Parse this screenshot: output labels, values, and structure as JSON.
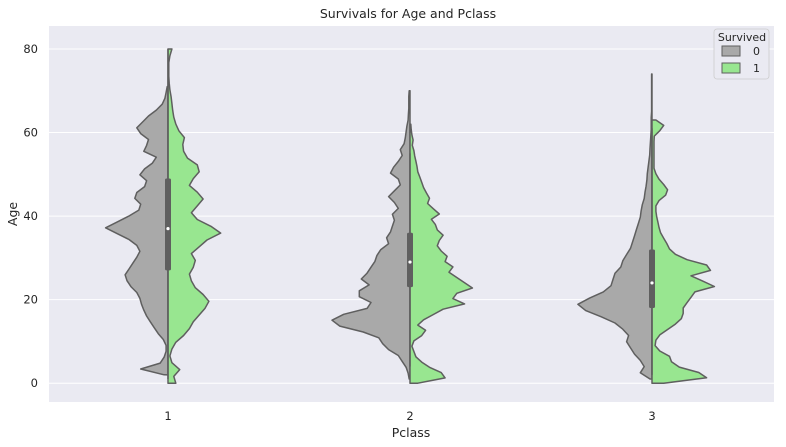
{
  "chart_data": {
    "type": "violin",
    "title": "Survivals for Age and Pclass",
    "xlabel": "Pclass",
    "ylabel": "Age",
    "categories": [
      "1",
      "2",
      "3"
    ],
    "yticks": [
      0,
      20,
      40,
      60,
      80
    ],
    "ylim": [
      -4.5,
      85.5
    ],
    "grid": true,
    "legend": {
      "title": "Survived",
      "position": "top-right",
      "entries": [
        {
          "label": "0",
          "color": "#a9a9a9"
        },
        {
          "label": "1",
          "color": "#98e690"
        }
      ]
    },
    "colors": {
      "background": "#eaeaf2",
      "grid": "#ffffff",
      "outline": "#5f5f5f",
      "survived_0": "#a9a9a9",
      "survived_1": "#98e690"
    },
    "violins": [
      {
        "pclass": "1",
        "survived_0": {
          "range": [
            2,
            71
          ],
          "density": [
            0.1,
            0.7,
            0.2,
            0.1,
            0.05,
            0.05,
            0.12,
            0.25,
            0.35,
            0.45,
            0.55,
            0.62,
            0.68,
            0.72,
            0.8,
            0.95,
            1.05,
            1.1,
            1.0,
            0.9,
            0.8,
            0.72,
            0.8,
            1.0,
            1.3,
            1.6,
            1.3,
            1.0,
            0.75,
            0.7,
            0.85,
            0.8,
            0.6,
            0.55,
            0.72,
            0.6,
            0.4,
            0.3,
            0.62,
            0.55,
            0.5,
            0.7,
            0.8,
            0.65,
            0.5,
            0.3,
            0.15,
            0.08,
            0.05,
            0.02
          ]
        },
        "survived_1": {
          "range": [
            0,
            80
          ],
          "density": [
            0.2,
            0.15,
            0.3,
            0.1,
            0.05,
            0.1,
            0.2,
            0.4,
            0.55,
            0.65,
            0.8,
            0.95,
            1.05,
            0.9,
            0.7,
            0.6,
            0.55,
            0.65,
            0.7,
            0.6,
            0.8,
            1.0,
            1.35,
            1.1,
            0.75,
            0.6,
            0.75,
            0.9,
            0.75,
            0.55,
            0.65,
            0.8,
            0.75,
            0.5,
            0.4,
            0.38,
            0.42,
            0.28,
            0.2,
            0.15,
            0.12,
            0.1,
            0.08,
            0.05,
            0.03,
            0.02,
            0.02,
            0.02,
            0.05,
            0.1
          ]
        }
      },
      {
        "pclass": "2",
        "survived_0": {
          "range": [
            1,
            70
          ],
          "density": [
            0.02,
            0.05,
            0.1,
            0.2,
            0.3,
            0.55,
            0.7,
            0.8,
            1.2,
            1.8,
            2.0,
            1.7,
            1.1,
            1.0,
            1.3,
            1.3,
            1.05,
            1.25,
            1.1,
            1.0,
            0.9,
            0.85,
            0.75,
            0.55,
            0.6,
            0.5,
            0.45,
            0.4,
            0.45,
            0.3,
            0.4,
            0.55,
            0.4,
            0.25,
            0.3,
            0.5,
            0.42,
            0.3,
            0.2,
            0.25,
            0.15,
            0.12,
            0.1,
            0.08,
            0.05,
            0.04,
            0.03,
            0.03,
            0.03,
            0.02
          ]
        },
        "survived_1": {
          "range": [
            0,
            62
          ],
          "density": [
            0.2,
            0.9,
            0.8,
            0.5,
            0.3,
            0.15,
            0.1,
            0.05,
            0.1,
            0.3,
            0.4,
            0.2,
            0.35,
            0.6,
            0.85,
            1.4,
            1.1,
            1.2,
            1.6,
            1.4,
            1.2,
            1.0,
            1.1,
            0.9,
            0.95,
            0.8,
            0.7,
            0.75,
            0.85,
            0.7,
            0.65,
            0.55,
            0.75,
            0.6,
            0.45,
            0.5,
            0.42,
            0.35,
            0.3,
            0.25,
            0.2,
            0.18,
            0.15,
            0.12,
            0.1,
            0.06,
            0.08,
            0.05,
            0.03,
            0.02
          ]
        }
      },
      {
        "pclass": "3",
        "survived_0": {
          "range": [
            1,
            74
          ],
          "density": [
            0.05,
            0.3,
            0.2,
            0.3,
            0.45,
            0.55,
            0.65,
            0.6,
            0.75,
            0.95,
            1.3,
            1.7,
            1.9,
            1.6,
            1.25,
            1.05,
            1.0,
            0.95,
            0.8,
            0.75,
            0.65,
            0.55,
            0.5,
            0.45,
            0.4,
            0.35,
            0.3,
            0.28,
            0.25,
            0.2,
            0.18,
            0.15,
            0.13,
            0.12,
            0.1,
            0.08,
            0.06,
            0.05,
            0.04,
            0.03,
            0.02,
            0.02,
            0.02,
            0.01,
            0.01,
            0.01,
            0.01,
            0.01,
            0.01,
            0.01
          ]
        },
        "survived_1": {
          "range": [
            0,
            63
          ],
          "density": [
            0.3,
            1.4,
            1.2,
            0.7,
            0.5,
            0.45,
            0.2,
            0.08,
            0.1,
            0.2,
            0.4,
            0.6,
            0.75,
            0.8,
            0.8,
            0.9,
            1.0,
            1.1,
            1.6,
            1.3,
            1.0,
            1.5,
            1.4,
            0.9,
            0.6,
            0.45,
            0.38,
            0.3,
            0.22,
            0.18,
            0.15,
            0.12,
            0.1,
            0.1,
            0.18,
            0.35,
            0.4,
            0.3,
            0.18,
            0.1,
            0.05,
            0.05,
            0.05,
            0.05,
            0.05,
            0.05,
            0.06,
            0.2,
            0.3,
            0.1
          ]
        }
      }
    ],
    "quartiles": [
      {
        "pclass": "1",
        "q1": 27,
        "median": 37,
        "q3": 49
      },
      {
        "pclass": "2",
        "q1": 23,
        "median": 29,
        "q3": 36
      },
      {
        "pclass": "3",
        "q1": 18,
        "median": 24,
        "q3": 32
      }
    ],
    "whiskers": [
      {
        "pclass": "1",
        "low": 1,
        "high": 80
      },
      {
        "pclass": "2",
        "low": 4,
        "high": 55
      },
      {
        "pclass": "3",
        "low": 2,
        "high": 61
      }
    ]
  }
}
